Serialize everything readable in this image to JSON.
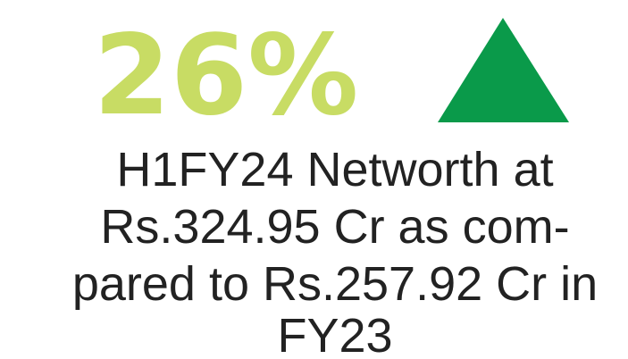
{
  "stat": {
    "value": "26%"
  },
  "description": {
    "lines": [
      "H1FY24 Networth at",
      "Rs.324.95 Cr as com-",
      "pared to Rs.257.92 Cr in",
      "FY23"
    ]
  }
}
